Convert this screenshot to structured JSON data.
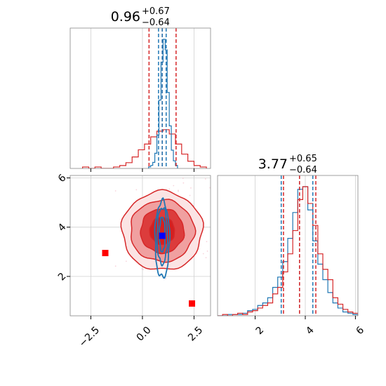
{
  "chart_data": {
    "type": "corner",
    "parameters": [
      {
        "title": {
          "median": "0.96",
          "upper": "+0.67",
          "lower": "−0.64"
        },
        "xlim": [
          -3.5,
          3.3
        ],
        "ticks": [
          -2.5,
          0.0,
          2.5
        ],
        "tick_labels": [
          "−2.5",
          "0.0",
          "2.5"
        ]
      },
      {
        "title": {
          "median": "3.77",
          "upper": "+0.65",
          "lower": "−0.64"
        },
        "xlim": [
          0.5,
          6.1
        ],
        "ticks": [
          2,
          4,
          6
        ],
        "tick_labels": [
          "2",
          "4",
          "6"
        ]
      }
    ],
    "joint_ylim": [
      0.4,
      6.1
    ],
    "joint_yticks": [
      2,
      4,
      6
    ],
    "joint_ytick_labels": [
      "2",
      "4",
      "6"
    ],
    "grid": true,
    "series": [
      {
        "color": "#d62728",
        "p0_quantiles": [
          0.32,
          0.96,
          1.63
        ],
        "p1_quantiles": [
          3.13,
          3.77,
          4.42
        ],
        "p0_hist": {
          "bins": [
            -2.9,
            -2.6,
            -2.3,
            -2.0,
            -1.7,
            -1.4,
            -1.1,
            -0.8,
            -0.5,
            -0.2,
            0.1,
            0.4,
            0.7,
            1.0,
            1.3,
            1.6,
            1.9,
            2.2,
            2.5,
            2.8,
            3.1
          ],
          "counts": [
            1,
            0,
            1,
            0,
            0,
            1,
            2,
            4,
            8,
            13,
            17,
            22,
            26,
            27,
            24,
            17,
            10,
            5,
            2,
            1
          ]
        },
        "p1_hist": {
          "bins": [
            0.5,
            0.7,
            0.9,
            1.1,
            1.3,
            1.5,
            1.7,
            1.9,
            2.1,
            2.3,
            2.5,
            2.7,
            2.9,
            3.1,
            3.3,
            3.5,
            3.7,
            3.9,
            4.1,
            4.3,
            4.5,
            4.7,
            4.9,
            5.1,
            5.3,
            5.5,
            5.7,
            5.9,
            6.1
          ],
          "counts": [
            0,
            1,
            0,
            1,
            2,
            1,
            3,
            4,
            6,
            8,
            10,
            17,
            22,
            34,
            48,
            66,
            90,
            100,
            87,
            70,
            48,
            36,
            28,
            14,
            9,
            5,
            3,
            2
          ]
        },
        "contours": [
          {
            "cx": 0.96,
            "cy": 3.85,
            "rx": 1.95,
            "ry": 1.6,
            "fill": "#fbe4e4"
          },
          {
            "cx": 0.96,
            "cy": 3.85,
            "rx": 1.55,
            "ry": 1.25,
            "fill": "#f0a0a0"
          },
          {
            "cx": 0.96,
            "cy": 3.85,
            "rx": 1.05,
            "ry": 0.9,
            "fill": "#dc3c3c"
          },
          {
            "cx": 0.96,
            "cy": 3.85,
            "rx": 0.6,
            "ry": 0.55,
            "fill": "#d42020"
          }
        ],
        "markers": [
          {
            "x": -1.8,
            "y": 2.95
          },
          {
            "x": 2.4,
            "y": 0.9
          }
        ]
      },
      {
        "color": "#1f77b4",
        "p0_quantiles": [
          0.78,
          0.96,
          1.15
        ],
        "p1_quantiles": [
          3.04,
          3.77,
          4.3
        ],
        "p0_hist": {
          "bins": [
            0.3,
            0.4,
            0.5,
            0.6,
            0.7,
            0.8,
            0.9,
            1.0,
            1.1,
            1.2,
            1.3,
            1.4,
            1.5,
            1.6,
            1.7
          ],
          "counts": [
            1,
            2,
            4,
            10,
            22,
            45,
            70,
            85,
            78,
            50,
            28,
            12,
            5,
            2
          ]
        },
        "p1_hist": {
          "bins": [
            0.5,
            0.7,
            0.9,
            1.1,
            1.3,
            1.5,
            1.7,
            1.9,
            2.1,
            2.3,
            2.5,
            2.7,
            2.9,
            3.1,
            3.3,
            3.5,
            3.7,
            3.9,
            4.1,
            4.3,
            4.5,
            4.7,
            4.9,
            5.1,
            5.3,
            5.5,
            5.7,
            5.9,
            6.1
          ],
          "counts": [
            0,
            0,
            1,
            1,
            1,
            2,
            4,
            5,
            8,
            10,
            14,
            22,
            30,
            42,
            60,
            80,
            98,
            100,
            82,
            58,
            40,
            28,
            18,
            10,
            6,
            3,
            2,
            1
          ]
        },
        "contours": [
          {
            "cx": 0.96,
            "cy": 3.5,
            "rx": 0.35,
            "ry": 1.55
          },
          {
            "cx": 0.96,
            "cy": 3.65,
            "rx": 0.25,
            "ry": 1.15
          },
          {
            "cx": 0.96,
            "cy": 3.7,
            "rx": 0.14,
            "ry": 0.7
          }
        ],
        "markers": [
          {
            "x": 0.96,
            "y": 3.65
          }
        ]
      }
    ]
  }
}
